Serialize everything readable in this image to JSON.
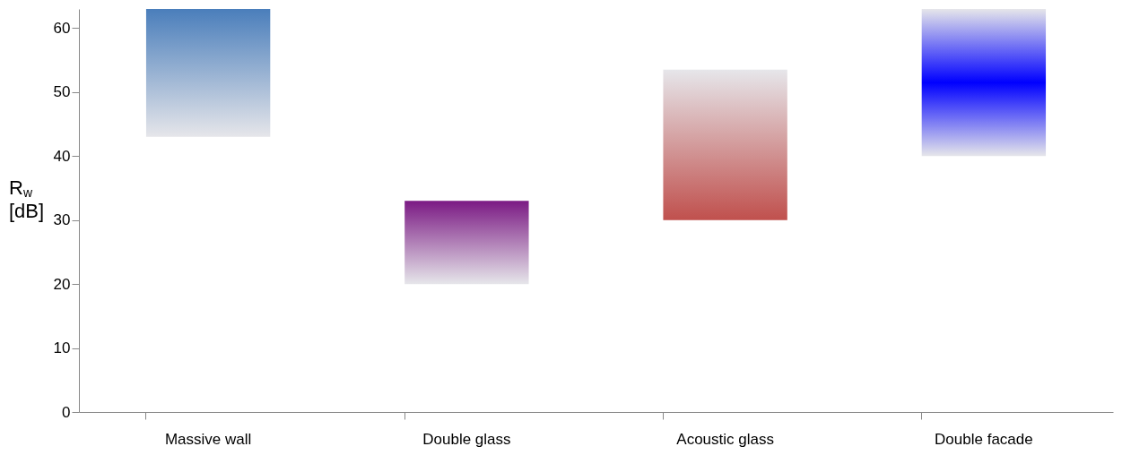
{
  "chart_data": {
    "type": "bar",
    "ylabel": "R$_{w}$ [dB]",
    "categories": [
      "Massive wall",
      "Double glass",
      "Acoustic glass",
      "Double facade"
    ],
    "base": [
      43,
      20,
      30,
      40
    ],
    "values": [
      20,
      13,
      23.5,
      23
    ],
    "colors": [
      "#4a7ebb",
      "#7b1a84",
      "#c0504d",
      "#0000ff"
    ],
    "ylim": [
      0,
      63
    ],
    "yticks": [
      0,
      10,
      20,
      30,
      40,
      50,
      60
    ],
    "grid": false
  }
}
